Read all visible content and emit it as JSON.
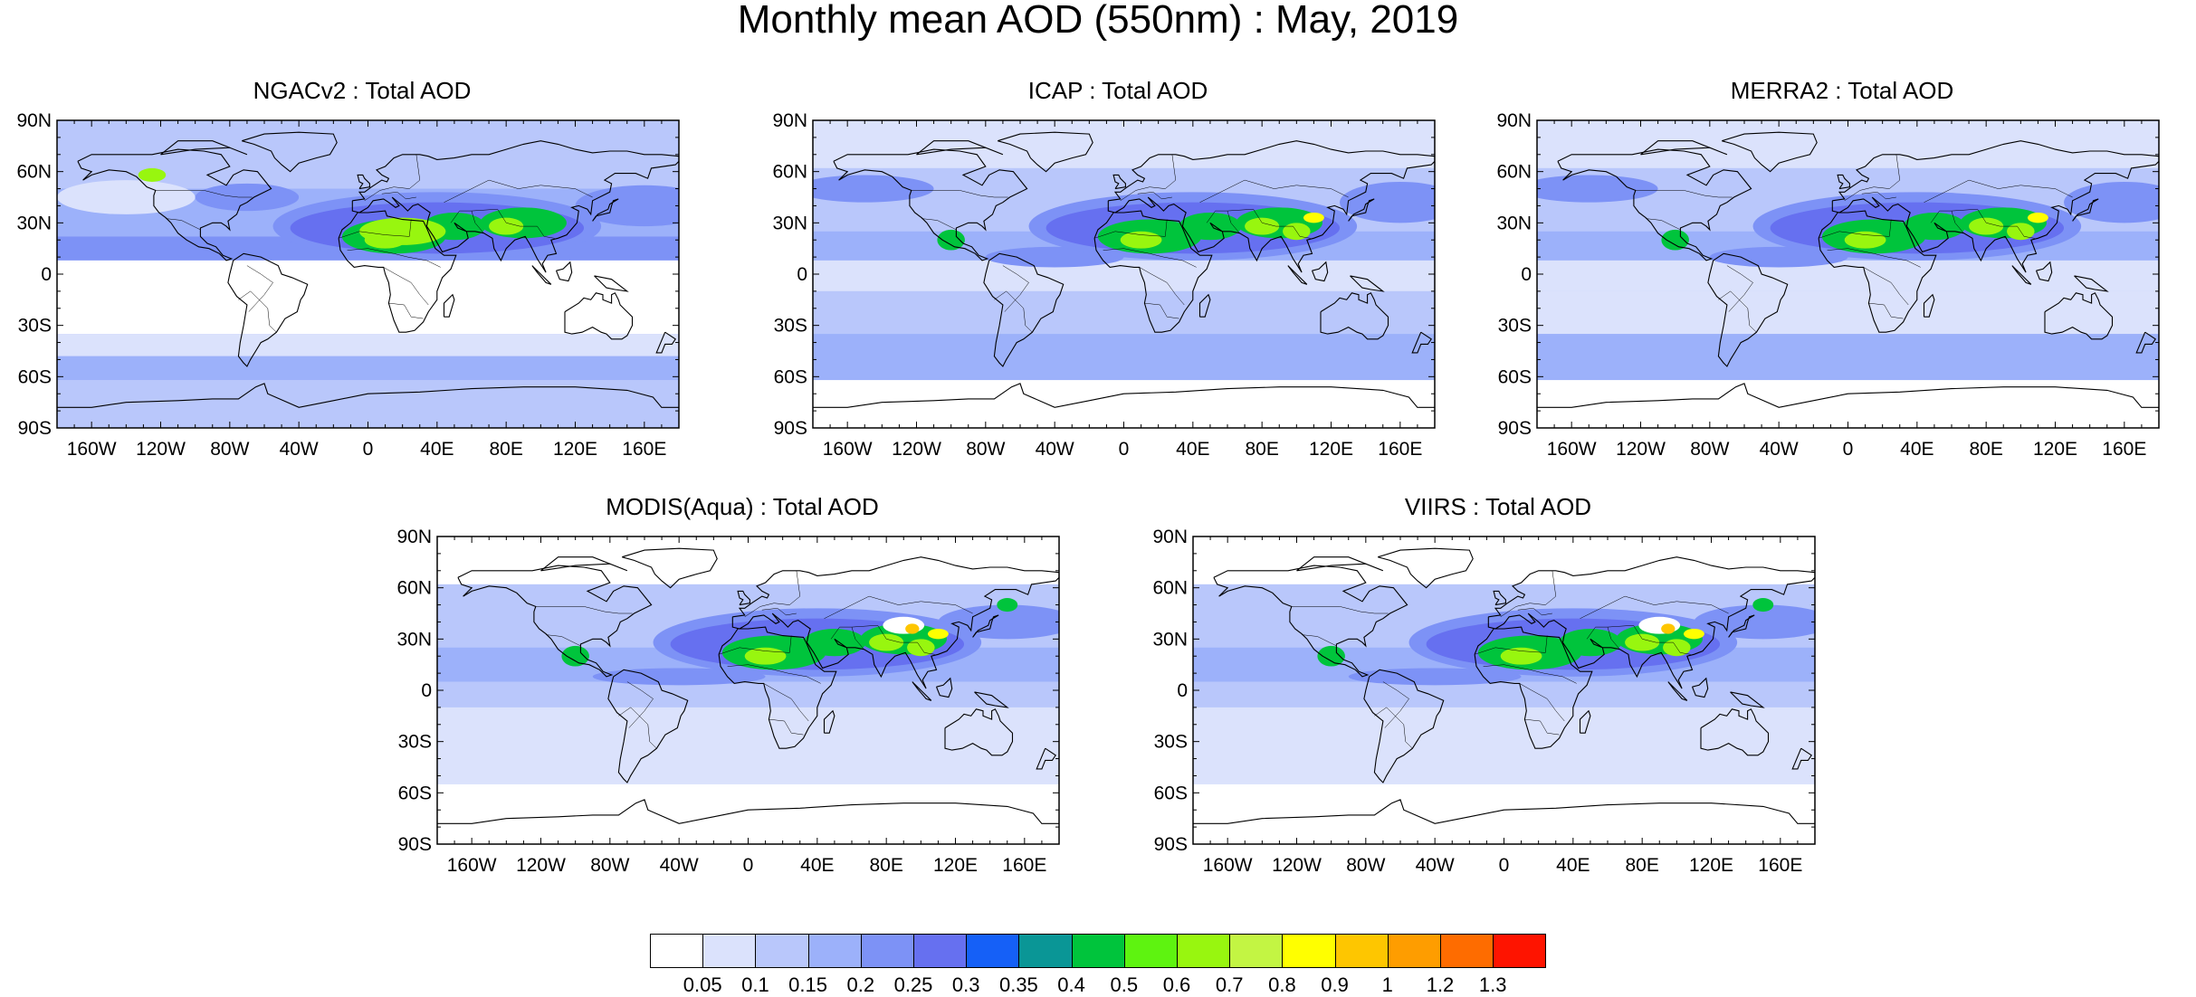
{
  "title": "Monthly mean AOD (550nm) : May, 2019",
  "panels": [
    {
      "title": "NGACv2 : Total AOD",
      "style": "ngac"
    },
    {
      "title": "ICAP : Total AOD",
      "style": "icap"
    },
    {
      "title": "MERRA2 : Total AOD",
      "style": "merra"
    },
    {
      "title": "MODIS(Aqua) : Total AOD",
      "style": "modis"
    },
    {
      "title": "VIIRS : Total AOD",
      "style": "viirs"
    }
  ],
  "lat_labels": [
    "90N",
    "60N",
    "30N",
    "0",
    "30S",
    "60S",
    "90S"
  ],
  "lon_labels": [
    "160W",
    "120W",
    "80W",
    "40W",
    "0",
    "40E",
    "80E",
    "120E",
    "160E"
  ],
  "colorbar": {
    "labels": [
      "0.05",
      "0.1",
      "0.15",
      "0.2",
      "0.25",
      "0.3",
      "0.35",
      "0.4",
      "0.5",
      "0.6",
      "0.7",
      "0.8",
      "0.9",
      "1",
      "1.2",
      "1.3"
    ],
    "colors": [
      "#ffffff",
      "#dbe2fc",
      "#b9c7fb",
      "#9cb1fa",
      "#7d92f6",
      "#6670f0",
      "#1560f7",
      "#0a9696",
      "#00c43c",
      "#5ef310",
      "#98f60f",
      "#c3f543",
      "#ffff00",
      "#fec600",
      "#fe9d00",
      "#fe6c00",
      "#fe1400"
    ]
  }
}
